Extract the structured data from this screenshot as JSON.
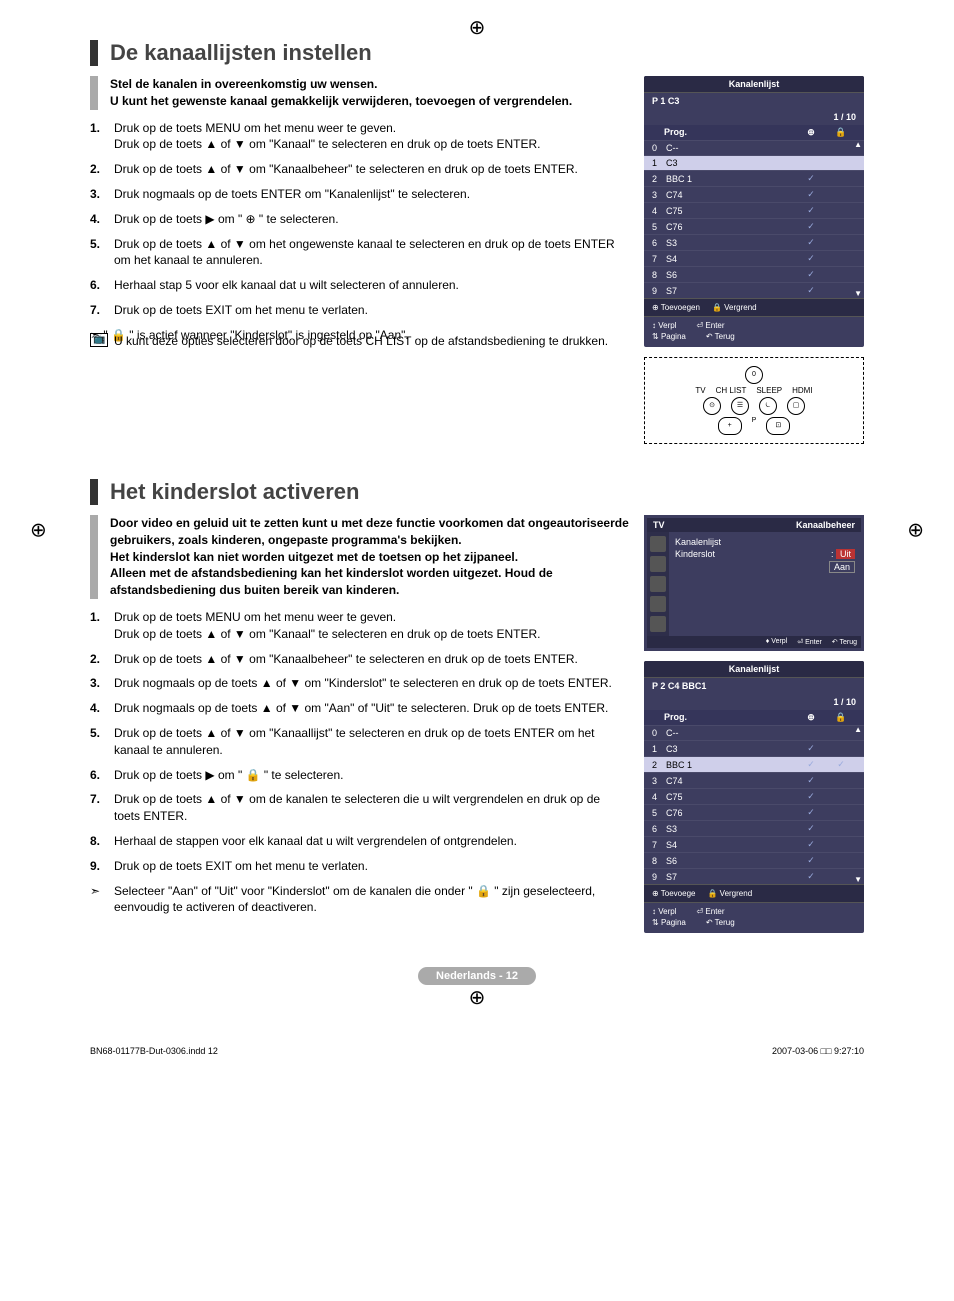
{
  "page_number_label": "Nederlands - 12",
  "footer": {
    "doc_id": "BN68-01177B-Dut-0306.indd   12",
    "datetime": "2007-03-06   □□ 9:27:10"
  },
  "section1": {
    "title": "De kanaallijsten instellen",
    "intro": "Stel de kanalen in overeenkomstig uw wensen.\nU kunt het gewenste kanaal gemakkelijk verwijderen, toevoegen of vergrendelen.",
    "steps": [
      "Druk op de toets MENU om het menu weer te geven.\nDruk op de toets ▲ of ▼ om \"Kanaal\" te selecteren en druk op de toets ENTER.",
      "Druk op de toets ▲ of ▼ om \"Kanaalbeheer\" te selecteren en druk op de toets ENTER.",
      "Druk nogmaals op de toets ENTER om \"Kanalenlijst\" te selecteren.",
      "Druk op de toets ▶ om \" ⊕ \" te selecteren.",
      "Druk op de toets ▲ of ▼ om het ongewenste kanaal te selecteren en druk op de toets ENTER om het kanaal te annuleren.",
      "Herhaal stap 5 voor elk kanaal dat u wilt selecteren of annuleren.",
      "Druk op de toets EXIT om het menu te verlaten."
    ],
    "note1": "\" 🔒 \" is actief wanneer \"Kinderslot\" is ingesteld op \"Aan\".",
    "note2": "U kunt deze opties selecteren door op de toets CH LIST op de afstandsbediening te drukken.",
    "note2_icon": "📺"
  },
  "section2": {
    "title": "Het kinderslot activeren",
    "intro": "Door video en geluid uit te zetten kunt u met deze functie voorkomen dat ongeautoriseerde gebruikers, zoals kinderen, ongepaste programma's bekijken.\nHet kinderslot kan niet worden uitgezet met de toetsen op het zijpaneel.\nAlleen met de afstandsbediening kan het kinderslot worden uitgezet. Houd de afstandsbediening dus buiten bereik van kinderen.",
    "steps": [
      "Druk op de toets MENU om het menu weer te geven.\nDruk op de toets ▲ of ▼ om \"Kanaal\" te selecteren en druk op de toets ENTER.",
      "Druk op de toets ▲ of ▼ om \"Kanaalbeheer\" te selecteren en druk op de toets ENTER.",
      "Druk nogmaals op de toets ▲ of ▼ om \"Kinderslot\" te selecteren en druk op de toets ENTER.",
      "Druk nogmaals op de toets ▲ of ▼ om \"Aan\" of \"Uit\" te selecteren. Druk op de toets ENTER.",
      "Druk op de toets ▲ of ▼ om \"Kanaallijst\" te selecteren en druk op de toets ENTER om het kanaal te annuleren.",
      "Druk op de toets ▶ om \" 🔒 \" te selecteren.",
      "Druk op de toets ▲ of ▼ om de kanalen te selecteren die u wilt vergrendelen en druk op de toets ENTER.",
      "Herhaal de stappen voor elk kanaal dat u wilt vergrendelen of ontgrendelen.",
      "Druk op de toets EXIT om het menu te verlaten."
    ],
    "note1": "Selecteer \"Aan\" of \"Uit\" voor \"Kinderslot\" om de kanalen die onder \" 🔒 \" zijn geselecteerd, eenvoudig te activeren of deactiveren."
  },
  "osd1": {
    "title": "Kanalenlijst",
    "current": "P   1   C3",
    "page": "1 / 10",
    "col_prog": "Prog.",
    "rows": [
      {
        "i": "0",
        "n": "C--",
        "chk": false,
        "sel": false
      },
      {
        "i": "1",
        "n": "C3",
        "chk": false,
        "sel": false,
        "hl": true
      },
      {
        "i": "2",
        "n": "BBC 1",
        "chk": true,
        "sel": false
      },
      {
        "i": "3",
        "n": "C74",
        "chk": true,
        "sel": false
      },
      {
        "i": "4",
        "n": "C75",
        "chk": true,
        "sel": false
      },
      {
        "i": "5",
        "n": "C76",
        "chk": true,
        "sel": false
      },
      {
        "i": "6",
        "n": "S3",
        "chk": true,
        "sel": false
      },
      {
        "i": "7",
        "n": "S4",
        "chk": true,
        "sel": false
      },
      {
        "i": "8",
        "n": "S6",
        "chk": true,
        "sel": false
      },
      {
        "i": "9",
        "n": "S7",
        "chk": true,
        "sel": false
      }
    ],
    "legend_add": "Toevoegen",
    "legend_lock": "Vergrend",
    "f_move": "Verpl",
    "f_enter": "Enter",
    "f_page": "Pagina",
    "f_return": "Terug"
  },
  "tvmenu": {
    "tv_label": "TV",
    "title": "Kanaalbeheer",
    "item1": "Kanalenlijst",
    "item2": "Kinderslot",
    "item2_val": "Uit",
    "item2_opt": "Aan",
    "f_move": "Verpl",
    "f_enter": "Enter",
    "f_return": "Terug"
  },
  "osd2": {
    "title": "Kanalenlijst",
    "current": "P   2   C4       BBC1",
    "page": "1 / 10",
    "col_prog": "Prog.",
    "rows": [
      {
        "i": "0",
        "n": "C--",
        "chk": false,
        "lock": false
      },
      {
        "i": "1",
        "n": "C3",
        "chk": true,
        "lock": false
      },
      {
        "i": "2",
        "n": "BBC 1",
        "chk": true,
        "lock": true,
        "hl": true
      },
      {
        "i": "3",
        "n": "C74",
        "chk": true,
        "lock": false
      },
      {
        "i": "4",
        "n": "C75",
        "chk": true,
        "lock": false
      },
      {
        "i": "5",
        "n": "C76",
        "chk": true,
        "lock": false
      },
      {
        "i": "6",
        "n": "S3",
        "chk": true,
        "lock": false
      },
      {
        "i": "7",
        "n": "S4",
        "chk": true,
        "lock": false
      },
      {
        "i": "8",
        "n": "S6",
        "chk": true,
        "lock": false
      },
      {
        "i": "9",
        "n": "S7",
        "chk": true,
        "lock": false
      }
    ],
    "legend_add": "Toevoege",
    "legend_lock": "Vergrend",
    "f_move": "Verpl",
    "f_enter": "Enter",
    "f_page": "Pagina",
    "f_return": "Terug"
  },
  "remote": {
    "labels": [
      "TV",
      "CH LIST",
      "SLEEP",
      "HDMI"
    ]
  }
}
